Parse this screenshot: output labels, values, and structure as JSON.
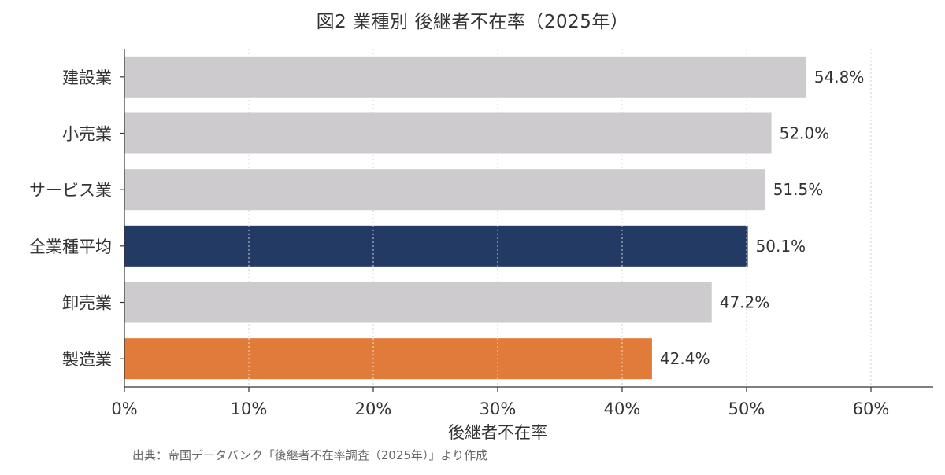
{
  "chart_data": {
    "type": "bar",
    "orientation": "horizontal",
    "title": "図2  業種別 後継者不在率（2025年）",
    "xlabel": "後継者不在率",
    "ylabel": "",
    "categories": [
      "建設業",
      "小売業",
      "サービス業",
      "全業種平均",
      "卸売業",
      "製造業"
    ],
    "values": [
      54.8,
      52.0,
      51.5,
      50.1,
      47.2,
      42.4
    ],
    "value_labels": [
      "54.8%",
      "52.0%",
      "51.5%",
      "50.1%",
      "47.2%",
      "42.4%"
    ],
    "bar_colors": [
      "#cdcbce",
      "#cdcbce",
      "#cdcbce",
      "#233a64",
      "#cdcbce",
      "#e07b39"
    ],
    "xlim": [
      0,
      65
    ],
    "xticks": [
      0,
      10,
      20,
      30,
      40,
      50,
      60
    ],
    "xtick_labels": [
      "0%",
      "10%",
      "20%",
      "30%",
      "40%",
      "50%",
      "60%"
    ],
    "grid": "vertical dotted",
    "source": "出典：帝国データバンク「後継者不在率調査（2025年）」より作成"
  }
}
